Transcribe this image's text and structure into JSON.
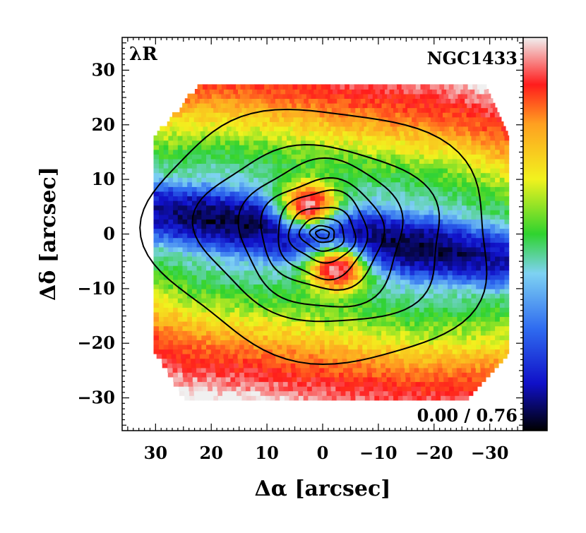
{
  "chart_data": {
    "type": "heatmap",
    "title": "NGC1433",
    "quantity_label": "λR",
    "xlabel": "Δα [arcsec]",
    "ylabel": "Δδ [arcsec]",
    "xlim": [
      36,
      -36
    ],
    "ylim": [
      -36,
      36
    ],
    "x_reversed": true,
    "x_ticks": [
      30,
      20,
      10,
      0,
      -10,
      -20,
      -30
    ],
    "x_tick_labels": [
      "30",
      "20",
      "10",
      "0",
      "−10",
      "−20",
      "−30"
    ],
    "y_ticks": [
      30,
      20,
      10,
      0,
      -10,
      -20,
      -30
    ],
    "y_tick_labels": [
      "30",
      "20",
      "10",
      "0",
      "−10",
      "−20",
      "−30"
    ],
    "colorbar": {
      "min": 0.0,
      "max": 0.76,
      "range_label": "0.00 / 0.76",
      "colormap": [
        "#000000",
        "#1010c8",
        "#2f6cf0",
        "#7ed2f2",
        "#2fd32f",
        "#f2f21e",
        "#ffa020",
        "#ff1c1c",
        "#f0f0f0"
      ]
    },
    "map_extent": {
      "x": [
        -33,
        30
      ],
      "y": [
        -30,
        27
      ]
    },
    "bar": {
      "position_angle_deg": 8,
      "half_width_arcsec": 4.5,
      "value": 0.05
    },
    "features": [
      {
        "name": "upper lobe",
        "x": 2.5,
        "y": 5.5,
        "value": 0.72
      },
      {
        "name": "lower lobe",
        "x": -2.5,
        "y": -6.5,
        "value": 0.72
      }
    ],
    "contours": [
      {
        "level": 1,
        "rx": 1.2,
        "ry": 0.8
      },
      {
        "level": 2,
        "rx": 2.2,
        "ry": 1.5
      },
      {
        "level": 3,
        "rx": 4.0,
        "ry": 3.0
      },
      {
        "level": 4,
        "rx": 6.0,
        "ry": 5.0
      },
      {
        "level": 5,
        "rx": 8.0,
        "ry": 8.0
      },
      {
        "level": 6,
        "rx": 11.0,
        "ry": 10.0
      },
      {
        "level": 7,
        "rx": 14.5,
        "ry": 13.5
      },
      {
        "level": 8,
        "rx": 22.0,
        "ry": 16.0
      },
      {
        "level": 9,
        "rx": 31.0,
        "ry": 23.0
      }
    ]
  }
}
